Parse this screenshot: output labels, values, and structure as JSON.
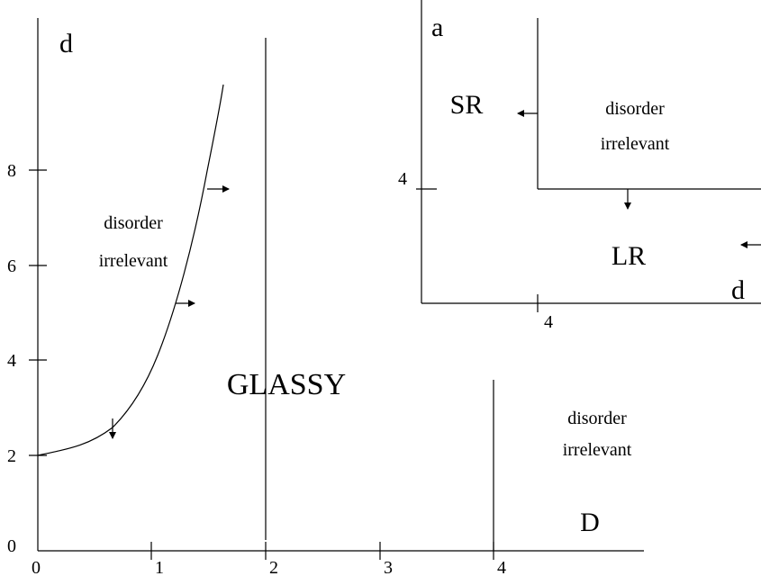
{
  "main": {
    "y_axis_label": "d",
    "x_tick_labels": [
      "0",
      "1",
      "2",
      "3",
      "4"
    ],
    "y_tick_labels": [
      "0",
      "2",
      "4",
      "6",
      "8"
    ],
    "left_region": [
      "disorder",
      "irrelevant"
    ],
    "center_region": "GLASSY",
    "right_region": [
      "disorder",
      "irrelevant"
    ],
    "right_region_label": "D"
  },
  "inset": {
    "y_axis_label": "a",
    "x_axis_label": "d",
    "y_tick_label": "4",
    "x_tick_label": "4",
    "sr_label": "SR",
    "lr_label": "LR",
    "region": [
      "disorder",
      "irrelevant"
    ]
  }
}
